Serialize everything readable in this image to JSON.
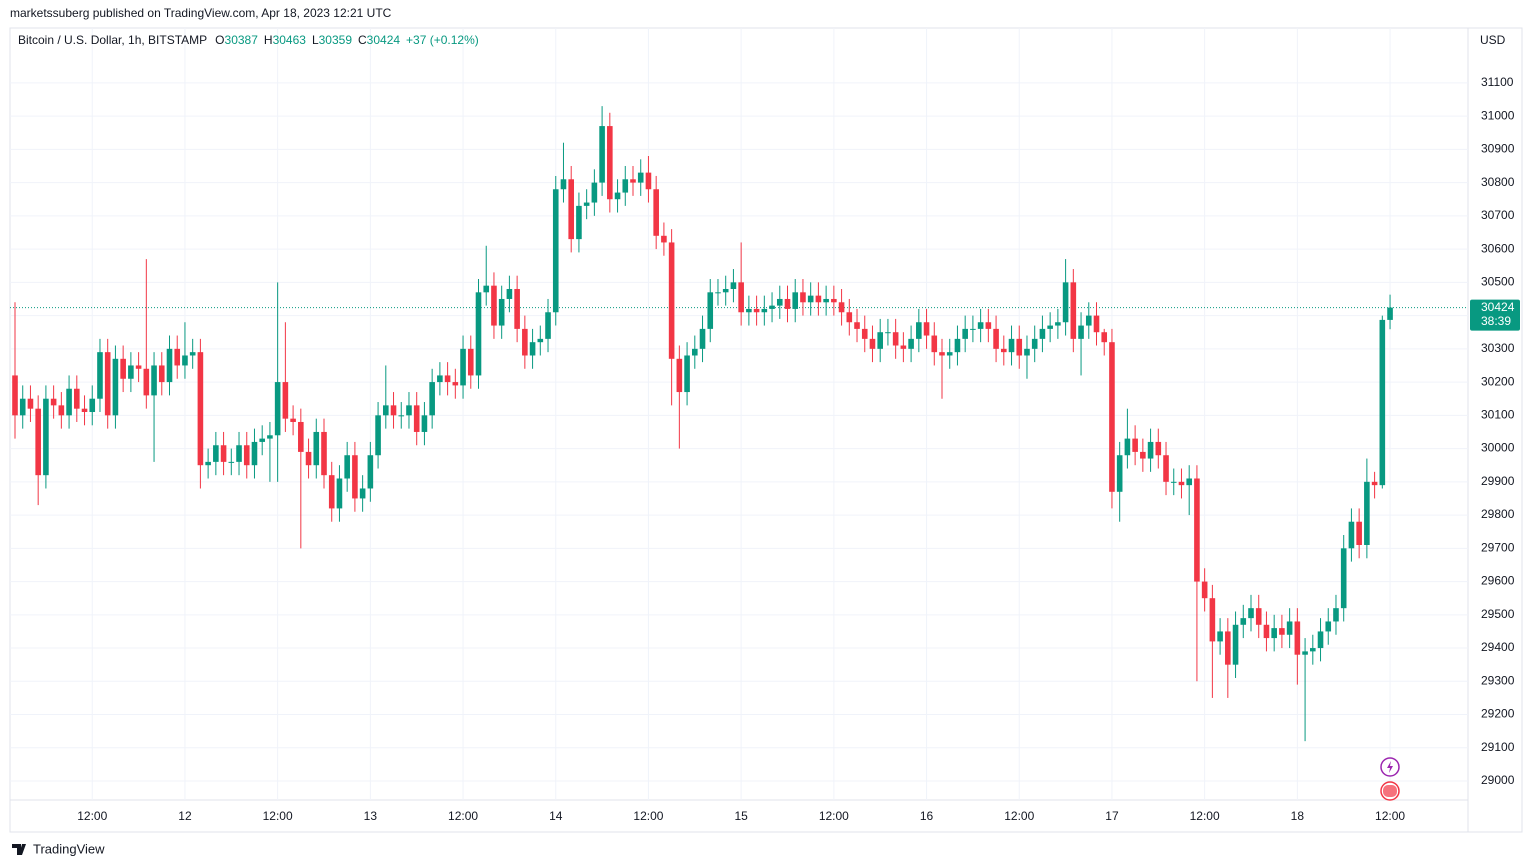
{
  "header": "marketssuberg published on TradingView.com, Apr 18, 2023 12:21 UTC",
  "footer": "TradingView",
  "chart_data": {
    "type": "candlestick",
    "title": "Bitcoin / U.S. Dollar, 1h, BITSTAMP",
    "ohlc_labels": [
      "O",
      "H",
      "L",
      "C"
    ],
    "change": "+37 (+0.12%)",
    "currency": "USD",
    "countdown": "38:39",
    "up_color": "#089981",
    "down_color": "#f23645",
    "grid": true,
    "ylim": [
      28943,
      31265
    ],
    "yticks": [
      29000,
      29100,
      29200,
      29300,
      29400,
      29500,
      29600,
      29700,
      29800,
      29900,
      30000,
      30100,
      30200,
      30300,
      30400,
      30500,
      30600,
      30700,
      30800,
      30900,
      31000,
      31100
    ],
    "categories": [
      null,
      null,
      null,
      null,
      null,
      null,
      null,
      null,
      null,
      null,
      "12:00",
      null,
      null,
      null,
      null,
      null,
      null,
      null,
      null,
      null,
      null,
      null,
      "12",
      null,
      null,
      null,
      null,
      null,
      null,
      null,
      null,
      null,
      null,
      null,
      "12:00",
      null,
      null,
      null,
      null,
      null,
      null,
      null,
      null,
      null,
      null,
      null,
      "13",
      null,
      null,
      null,
      null,
      null,
      null,
      null,
      null,
      null,
      null,
      null,
      "12:00",
      null,
      null,
      null,
      null,
      null,
      null,
      null,
      null,
      null,
      null,
      null,
      "14",
      null,
      null,
      null,
      null,
      null,
      null,
      null,
      null,
      null,
      null,
      null,
      "12:00",
      null,
      null,
      null,
      null,
      null,
      null,
      null,
      null,
      null,
      null,
      null,
      "15",
      null,
      null,
      null,
      null,
      null,
      null,
      null,
      null,
      null,
      null,
      null,
      "12:00",
      null,
      null,
      null,
      null,
      null,
      null,
      null,
      null,
      null,
      null,
      null,
      "16",
      null,
      null,
      null,
      null,
      null,
      null,
      null,
      null,
      null,
      null,
      null,
      "12:00",
      null,
      null,
      null,
      null,
      null,
      null,
      null,
      null,
      null,
      null,
      null,
      "17",
      null,
      null,
      null,
      null,
      null,
      null,
      null,
      null,
      null,
      null,
      null,
      "12:00",
      null,
      null,
      null,
      null,
      null,
      null,
      null,
      null,
      null,
      null,
      null,
      "18",
      null,
      null,
      null,
      null,
      null,
      null,
      null,
      null,
      null,
      null,
      null,
      "12:00"
    ],
    "open": [
      30220,
      30100,
      30150,
      30120,
      29920,
      30150,
      30130,
      30100,
      30180,
      30120,
      30110,
      30150,
      30290,
      30100,
      30270,
      30210,
      30250,
      30240,
      30160,
      30250,
      30200,
      30300,
      30250,
      30280,
      30290,
      29950,
      29960,
      30010,
      29960,
      29960,
      30010,
      29950,
      30020,
      30030,
      30040,
      30200,
      30090,
      30080,
      29990,
      29950,
      30050,
      29920,
      29820,
      29910,
      29980,
      29850,
      29880,
      29980,
      30100,
      30130,
      30100,
      30100,
      30130,
      30050,
      30100,
      30200,
      30220,
      30200,
      30190,
      30300,
      30220,
      30470,
      30490,
      30370,
      30450,
      30480,
      30360,
      30280,
      30320,
      30330,
      30410,
      30780,
      30810,
      30630,
      30730,
      30740,
      30800,
      30970,
      30750,
      30770,
      30810,
      30800,
      30830,
      30780,
      30640,
      30620,
      30270,
      30170,
      30280,
      30300,
      30360,
      30470,
      30470,
      30480,
      30500,
      30410,
      30420,
      30410,
      30420,
      30430,
      30450,
      30420,
      30470,
      30440,
      30460,
      30440,
      30450,
      30440,
      30410,
      30380,
      30360,
      30330,
      30300,
      30350,
      30350,
      30310,
      30300,
      30330,
      30380,
      30340,
      30290,
      30280,
      30290,
      30330,
      30360,
      30360,
      30380,
      30360,
      30300,
      30290,
      30330,
      30280,
      30300,
      30330,
      30360,
      30370,
      30380,
      30500,
      30330,
      30370,
      30400,
      30350,
      30320,
      29870,
      29980,
      30030,
      29990,
      29970,
      30020,
      29980,
      29900,
      29900,
      29890,
      29910,
      29600,
      29550,
      29420,
      29450,
      29350,
      29470,
      29490,
      29520,
      29470,
      29430,
      29460,
      29440,
      29480,
      29380,
      29390,
      29400,
      29450,
      29480,
      29520,
      29700,
      29780,
      29710,
      29900,
      29890,
      30387
    ],
    "high": [
      30440,
      30190,
      30190,
      30160,
      30190,
      30190,
      30170,
      30220,
      30220,
      30160,
      30190,
      30330,
      30330,
      30310,
      30310,
      30290,
      30290,
      30570,
      30290,
      30290,
      30340,
      30340,
      30380,
      30330,
      30330,
      30000,
      30050,
      30050,
      30000,
      30050,
      30050,
      30060,
      30070,
      30080,
      30500,
      30380,
      30130,
      30120,
      30030,
      30090,
      30090,
      29960,
      29950,
      30020,
      30020,
      29920,
      30020,
      30140,
      30250,
      30170,
      30140,
      30170,
      30170,
      30140,
      30240,
      30260,
      30260,
      30240,
      30340,
      30340,
      30510,
      30610,
      30530,
      30490,
      30520,
      30520,
      30400,
      30360,
      30370,
      30450,
      30820,
      30920,
      30850,
      30770,
      30780,
      30840,
      31030,
      31010,
      30810,
      30850,
      30850,
      30870,
      30880,
      30820,
      30680,
      30660,
      30310,
      30320,
      30340,
      30400,
      30510,
      30510,
      30520,
      30540,
      30620,
      30460,
      30460,
      30460,
      30470,
      30490,
      30490,
      30510,
      30510,
      30500,
      30500,
      30490,
      30490,
      30480,
      30450,
      30420,
      30400,
      30370,
      30390,
      30390,
      30390,
      30350,
      30370,
      30420,
      30420,
      30380,
      30330,
      30330,
      30370,
      30400,
      30400,
      30420,
      30420,
      30400,
      30340,
      30370,
      30370,
      30340,
      30370,
      30400,
      30410,
      30420,
      30570,
      30540,
      30410,
      30440,
      30440,
      30360,
      30360,
      30020,
      30120,
      30070,
      30030,
      30060,
      30060,
      30020,
      29940,
      29940,
      29950,
      29950,
      29640,
      29590,
      29490,
      29490,
      29510,
      29530,
      29560,
      29560,
      29510,
      29500,
      29500,
      29520,
      29520,
      29430,
      29440,
      29490,
      29520,
      29560,
      29740,
      29820,
      29820,
      29970,
      29930,
      30400,
      30463
    ],
    "low": [
      30030,
      30060,
      30080,
      29830,
      29880,
      30090,
      30060,
      30060,
      30080,
      30070,
      30070,
      30110,
      30060,
      30060,
      30170,
      30170,
      30200,
      30120,
      29960,
      30160,
      30160,
      30210,
      30210,
      30240,
      29880,
      29910,
      29920,
      29920,
      29920,
      29920,
      29910,
      29910,
      29980,
      29900,
      29900,
      30050,
      30040,
      29700,
      29910,
      29910,
      29880,
      29780,
      29780,
      29870,
      29810,
      29810,
      29840,
      29940,
      30060,
      30060,
      30060,
      30060,
      30010,
      30010,
      30060,
      30160,
      30160,
      30150,
      30150,
      30180,
      30180,
      30430,
      30330,
      30330,
      30410,
      30320,
      30240,
      30240,
      30280,
      30290,
      30370,
      30740,
      30590,
      30590,
      30690,
      30700,
      30760,
      30710,
      30710,
      30730,
      30760,
      30760,
      30740,
      30600,
      30580,
      30130,
      30000,
      30130,
      30240,
      30260,
      30320,
      30430,
      30430,
      30440,
      30370,
      30370,
      30370,
      30370,
      30380,
      30390,
      30380,
      30380,
      30400,
      30400,
      30400,
      30400,
      30400,
      30370,
      30340,
      30320,
      30290,
      30260,
      30260,
      30310,
      30270,
      30260,
      30260,
      30290,
      30300,
      30250,
      30150,
      30240,
      30250,
      30290,
      30320,
      30320,
      30320,
      30260,
      30250,
      30250,
      30240,
      30210,
      30260,
      30290,
      30320,
      30330,
      30340,
      30290,
      30220,
      30330,
      30310,
      30280,
      29820,
      29780,
      29940,
      29950,
      29930,
      29930,
      29940,
      29860,
      29860,
      29850,
      29800,
      29300,
      29510,
      29250,
      29380,
      29250,
      29310,
      29430,
      29450,
      29430,
      29390,
      29390,
      29400,
      29400,
      29290,
      29120,
      29350,
      29360,
      29410,
      29440,
      29480,
      29660,
      29670,
      29670,
      29850,
      29880,
      30359
    ],
    "close": [
      30100,
      30150,
      30120,
      29920,
      30150,
      30130,
      30100,
      30180,
      30120,
      30110,
      30150,
      30290,
      30100,
      30270,
      30210,
      30250,
      30240,
      30160,
      30250,
      30200,
      30300,
      30250,
      30280,
      30290,
      29950,
      29960,
      30010,
      29960,
      29960,
      30010,
      29950,
      30020,
      30030,
      30040,
      30200,
      30090,
      30080,
      29990,
      29950,
      30050,
      29920,
      29820,
      29910,
      29980,
      29850,
      29880,
      29980,
      30100,
      30130,
      30100,
      30100,
      30130,
      30050,
      30100,
      30200,
      30220,
      30200,
      30190,
      30300,
      30220,
      30470,
      30490,
      30370,
      30450,
      30480,
      30360,
      30280,
      30320,
      30330,
      30410,
      30780,
      30810,
      30630,
      30730,
      30740,
      30800,
      30970,
      30750,
      30770,
      30810,
      30800,
      30830,
      30780,
      30640,
      30620,
      30270,
      30170,
      30280,
      30300,
      30360,
      30470,
      30470,
      30480,
      30500,
      30410,
      30420,
      30410,
      30420,
      30430,
      30450,
      30420,
      30470,
      30440,
      30460,
      30440,
      30450,
      30440,
      30410,
      30380,
      30360,
      30330,
      30300,
      30350,
      30350,
      30310,
      30300,
      30330,
      30380,
      30340,
      30290,
      30280,
      30290,
      30330,
      30360,
      30360,
      30380,
      30360,
      30300,
      30290,
      30330,
      30280,
      30300,
      30330,
      30360,
      30370,
      30380,
      30500,
      30330,
      30370,
      30400,
      30350,
      30320,
      29870,
      29980,
      30030,
      29990,
      29970,
      30020,
      29980,
      29900,
      29900,
      29890,
      29910,
      29600,
      29550,
      29420,
      29450,
      29350,
      29470,
      29490,
      29520,
      29470,
      29430,
      29460,
      29440,
      29480,
      29380,
      29390,
      29400,
      29450,
      29480,
      29520,
      29700,
      29780,
      29710,
      29900,
      29890,
      30387,
      30424
    ]
  }
}
